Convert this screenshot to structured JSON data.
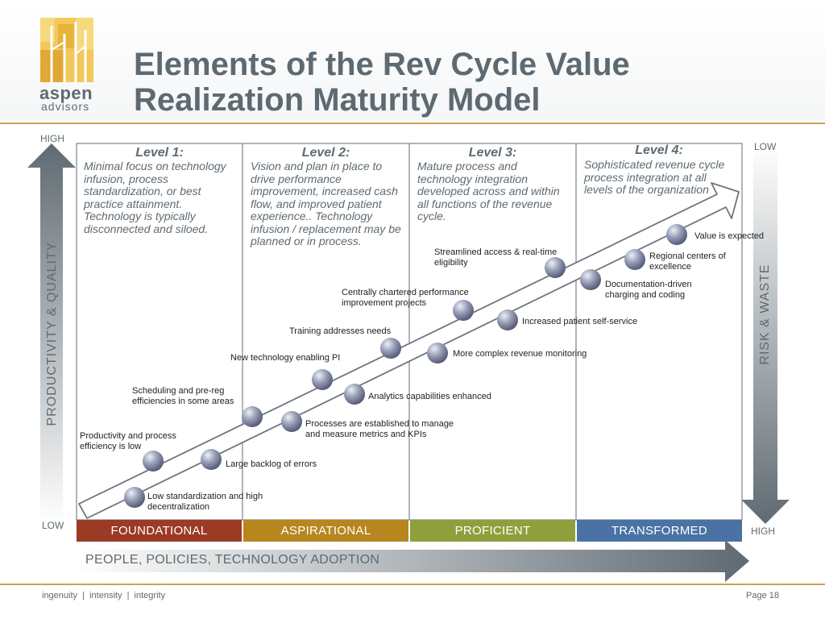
{
  "title_line1": "Elements of the Rev Cycle Value",
  "title_line2": "Realization Maturity Model",
  "logo": {
    "word1": "aspen",
    "word2": "advisors"
  },
  "left_axis": {
    "top": "HIGH",
    "bottom": "LOW",
    "label": "PRODUCTIVITY & QUALITY"
  },
  "right_axis": {
    "top": "LOW",
    "bottom": "HIGH",
    "label": "RISK  &  WASTE"
  },
  "levels": [
    {
      "title": "Level 1:",
      "description": "Minimal focus on technology infusion, process standardization, or best practice attainment. Technology is typically disconnected and siloed."
    },
    {
      "title": "Level 2:",
      "description": "Vision and plan in place to drive performance improvement, increased cash flow, and improved patient experience.. Technology infusion / replacement may be planned or in process."
    },
    {
      "title": "Level 3:",
      "description": "Mature process and technology integration developed across and within all functions of the revenue cycle."
    },
    {
      "title": "Level 4:",
      "description": "Sophisticated revenue cycle process integration at all levels of the organization"
    }
  ],
  "upper_labels": [
    "Productivity and process efficiency is low",
    "Scheduling and pre-reg efficiencies in some areas",
    "New technology enabling PI",
    "Training addresses needs",
    "Centrally chartered performance improvement projects",
    "Streamlined access & real-time eligibility",
    "Value is expected"
  ],
  "lower_labels": [
    "Low standardization and high decentralization",
    "Large backlog of errors",
    "Processes are established to manage and measure metrics and KPIs",
    "Analytics capabilities enhanced",
    "More complex revenue monitoring",
    "Increased patient self-service",
    "Documentation-driven charging and coding",
    "Regional centers of excellence"
  ],
  "bands": [
    {
      "label": "FOUNDATIONAL",
      "color": "#9b3a25"
    },
    {
      "label": "ASPIRATIONAL",
      "color": "#b8861e"
    },
    {
      "label": "PROFICIENT",
      "color": "#8ea03b"
    },
    {
      "label": "TRANSFORMED",
      "color": "#4a72a4"
    }
  ],
  "bottom_arrow": "PEOPLE, POLICIES, TECHNOLOGY ADOPTION",
  "footer": {
    "tagline": "ingenuity  |  intensity  |  integrity",
    "page": "Page 18"
  }
}
